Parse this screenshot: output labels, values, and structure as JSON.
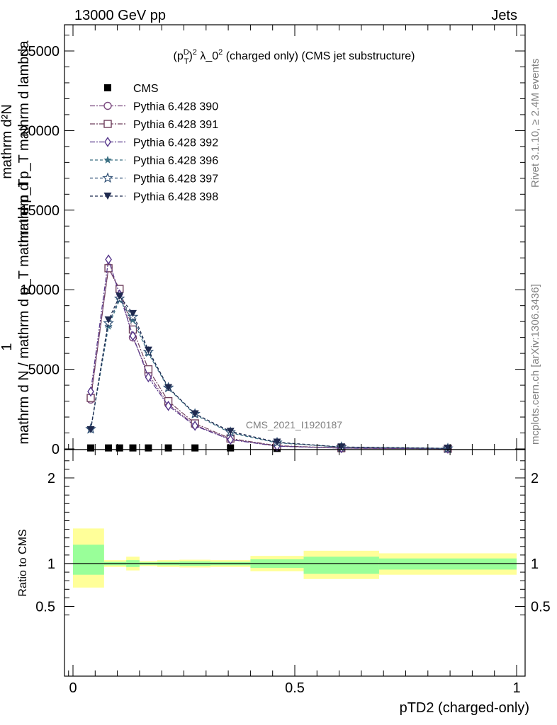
{
  "header": {
    "left": "13000 GeV pp",
    "right": "Jets"
  },
  "side_labels": {
    "rivet": "Rivet 3.1.10, ≥ 2.4M events",
    "mcplots": "mcplots.cern.ch [arXiv:1306.3436]"
  },
  "watermark": "CMS_2021_I1920187",
  "chart_data": [
    {
      "type": "line",
      "title": "(p_T^D)^2 λ_0^2 (charged only) (CMS jet substructure)",
      "title_parts": {
        "p": "(p",
        "sup1": "D",
        "sub1": "T",
        "mid": ")",
        "sup2": "2",
        "lam": " λ_0",
        "sup3": "2",
        "rest": " (charged only) (CMS jet substructure)"
      },
      "ylabel_lines": [
        "mathrm d²N",
        "mathrm d p_T mathrm d lambda",
        "1",
        "mathrm d N / mathrm d p_T mathrm d p_T"
      ],
      "xlim": [
        0,
        1
      ],
      "ylim": [
        0,
        27000
      ],
      "yticks": [
        {
          "v": 0,
          "label": "0"
        },
        {
          "v": 5000,
          "label": "5000"
        },
        {
          "v": 10000,
          "label": "10000"
        },
        {
          "v": 15000,
          "label": "15000"
        },
        {
          "v": 20000,
          "label": "20000"
        },
        {
          "v": 25000,
          "label": "25000"
        }
      ],
      "legend_position": "top-left",
      "series": [
        {
          "name": "CMS",
          "color": "#000000",
          "marker": "square",
          "dash": "none",
          "x": [
            0.04,
            0.08,
            0.105,
            0.135,
            0.17,
            0.215,
            0.275,
            0.355,
            0.46,
            0.605,
            0.845
          ],
          "y": [
            60,
            60,
            60,
            60,
            60,
            60,
            60,
            60,
            30,
            15,
            5
          ]
        },
        {
          "name": "Pythia 6.428 390",
          "color": "#7b4a7f",
          "marker": "circle",
          "dash": "7,2,2,2",
          "x": [
            0.04,
            0.08,
            0.105,
            0.135,
            0.17,
            0.215,
            0.275,
            0.355,
            0.46,
            0.605,
            0.845
          ],
          "y": [
            3100,
            11400,
            9950,
            7000,
            4700,
            2800,
            1500,
            600,
            180,
            50,
            15
          ]
        },
        {
          "name": "Pythia 6.428 391",
          "color": "#6e3f5c",
          "marker": "square-open",
          "dash": "7,2,2,2",
          "x": [
            0.04,
            0.08,
            0.105,
            0.135,
            0.17,
            0.215,
            0.275,
            0.355,
            0.46,
            0.605,
            0.845
          ],
          "y": [
            3200,
            11350,
            10050,
            7500,
            5000,
            3000,
            1600,
            650,
            200,
            55,
            15
          ]
        },
        {
          "name": "Pythia 6.428 392",
          "color": "#55358a",
          "marker": "diamond-open",
          "dash": "7,2,2,2",
          "x": [
            0.04,
            0.08,
            0.105,
            0.135,
            0.17,
            0.215,
            0.275,
            0.355,
            0.46,
            0.605,
            0.845
          ],
          "y": [
            3600,
            11900,
            9700,
            7100,
            4500,
            2700,
            1450,
            580,
            170,
            45,
            12
          ]
        },
        {
          "name": "Pythia 6.428 396",
          "color": "#3b6f82",
          "marker": "star-filled",
          "dash": "4,3",
          "x": [
            0.04,
            0.08,
            0.105,
            0.135,
            0.17,
            0.215,
            0.275,
            0.355,
            0.46,
            0.605,
            0.845
          ],
          "y": [
            1200,
            7700,
            9350,
            8100,
            6000,
            3800,
            2150,
            1000,
            380,
            110,
            30
          ]
        },
        {
          "name": "Pythia 6.428 397",
          "color": "#2f4f74",
          "marker": "star-open",
          "dash": "4,3",
          "x": [
            0.04,
            0.08,
            0.105,
            0.135,
            0.17,
            0.215,
            0.275,
            0.355,
            0.46,
            0.605,
            0.845
          ],
          "y": [
            1250,
            7900,
            9450,
            8300,
            6100,
            3850,
            2200,
            1050,
            400,
            115,
            30
          ]
        },
        {
          "name": "Pythia 6.428 398",
          "color": "#1f2a4f",
          "marker": "triangle-down",
          "dash": "4,3",
          "x": [
            0.04,
            0.08,
            0.105,
            0.135,
            0.17,
            0.215,
            0.275,
            0.355,
            0.46,
            0.605,
            0.845
          ],
          "y": [
            1200,
            8100,
            9600,
            8500,
            6200,
            3850,
            2200,
            1100,
            420,
            120,
            35
          ]
        }
      ]
    },
    {
      "type": "area",
      "ylabel": "Ratio to CMS",
      "xlabel": "pTD2 (charged-only)",
      "xlim": [
        0,
        1
      ],
      "ylim": [
        0.3,
        2.3
      ],
      "xticks": [
        {
          "v": 0,
          "label": "0"
        },
        {
          "v": 0.5,
          "label": "0.5"
        },
        {
          "v": 1,
          "label": "1"
        }
      ],
      "yticks": [
        {
          "v": 0.5,
          "label": "0.5"
        },
        {
          "v": 1,
          "label": "1"
        },
        {
          "v": 2,
          "label": "2"
        }
      ],
      "bands": {
        "outer_color": "#ffff99",
        "inner_color": "#99ff99",
        "bins": [
          {
            "x0": 0.0,
            "x1": 0.07,
            "lo_outer": 0.72,
            "hi_outer": 1.41,
            "lo_inner": 0.87,
            "hi_inner": 1.22
          },
          {
            "x0": 0.07,
            "x1": 0.12,
            "lo_outer": 0.96,
            "hi_outer": 1.04,
            "lo_inner": 0.98,
            "hi_inner": 1.02
          },
          {
            "x0": 0.12,
            "x1": 0.15,
            "lo_outer": 0.92,
            "hi_outer": 1.08,
            "lo_inner": 0.96,
            "hi_inner": 1.04
          },
          {
            "x0": 0.15,
            "x1": 0.19,
            "lo_outer": 0.97,
            "hi_outer": 1.03,
            "lo_inner": 0.985,
            "hi_inner": 1.015
          },
          {
            "x0": 0.19,
            "x1": 0.24,
            "lo_outer": 0.96,
            "hi_outer": 1.04,
            "lo_inner": 0.98,
            "hi_inner": 1.02
          },
          {
            "x0": 0.24,
            "x1": 0.31,
            "lo_outer": 0.955,
            "hi_outer": 1.045,
            "lo_inner": 0.975,
            "hi_inner": 1.025
          },
          {
            "x0": 0.31,
            "x1": 0.4,
            "lo_outer": 0.96,
            "hi_outer": 1.04,
            "lo_inner": 0.98,
            "hi_inner": 1.02
          },
          {
            "x0": 0.4,
            "x1": 0.52,
            "lo_outer": 0.91,
            "hi_outer": 1.09,
            "lo_inner": 0.95,
            "hi_inner": 1.05
          },
          {
            "x0": 0.52,
            "x1": 0.69,
            "lo_outer": 0.82,
            "hi_outer": 1.15,
            "lo_inner": 0.88,
            "hi_inner": 1.08
          },
          {
            "x0": 0.69,
            "x1": 1.0,
            "lo_outer": 0.87,
            "hi_outer": 1.12,
            "lo_inner": 0.93,
            "hi_inner": 1.06
          }
        ]
      }
    }
  ]
}
